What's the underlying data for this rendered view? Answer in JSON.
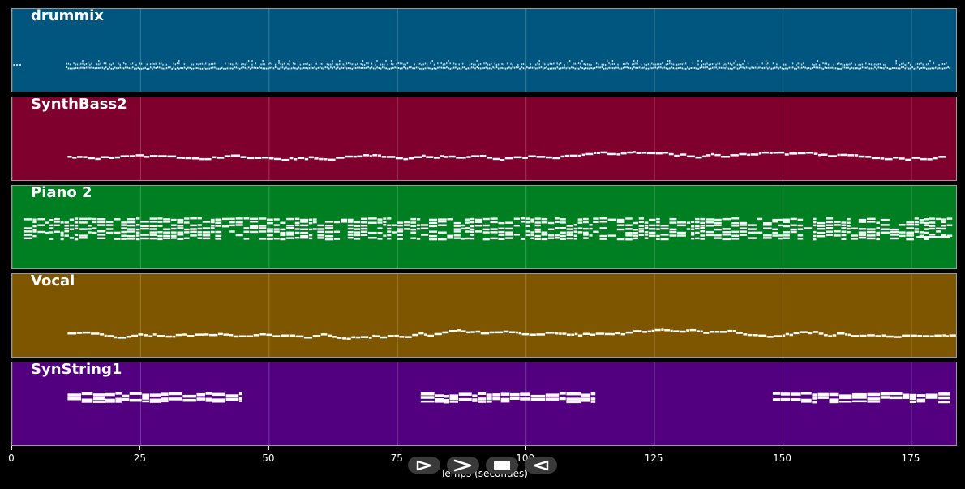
{
  "chart_data": {
    "type": "piano-roll",
    "xlabel": "Temps (secondes)",
    "xlim": [
      0,
      184
    ],
    "xticks": [
      0,
      25,
      50,
      75,
      100,
      125,
      150,
      175
    ],
    "grid": true,
    "tracks": [
      {
        "name": "drummix",
        "color": "#00567f",
        "start": 10.5,
        "end": 182.5,
        "pattern": "dense"
      },
      {
        "name": "SynthBass2",
        "color": "#7f002c",
        "start": 10.8,
        "end": 181.5,
        "pattern": "line"
      },
      {
        "name": "Piano 2",
        "color": "#007f22",
        "start": 2.2,
        "end": 182.5,
        "pattern": "chords"
      },
      {
        "name": "Vocal",
        "color": "#7f5600",
        "start": 10.8,
        "end": 182.5,
        "pattern": "line"
      },
      {
        "name": "SynString1",
        "color": "#52007f",
        "segments": [
          [
            10.8,
            44.8
          ],
          [
            79.5,
            113.5
          ],
          [
            148,
            182.5
          ]
        ],
        "pattern": "blocks"
      }
    ]
  },
  "controls": [
    {
      "icon": "play-icon"
    },
    {
      "icon": "fast-forward-icon"
    },
    {
      "icon": "stop-icon"
    },
    {
      "icon": "rewind-icon"
    }
  ]
}
